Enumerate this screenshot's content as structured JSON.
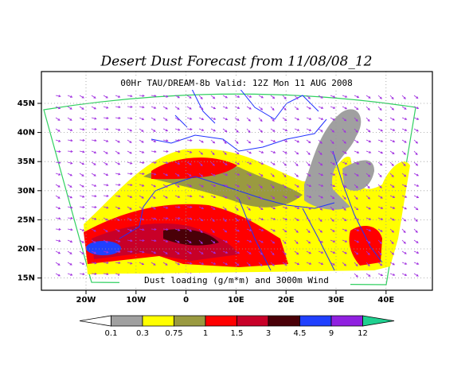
{
  "header": {
    "title": "Desert Dust Forecast from 11/08/08_12"
  },
  "map": {
    "subtitle": "00Hr TAU/DREAM-8b Valid: 12Z Mon 11 AUG 2008",
    "caption": "Dust loading (g/m*m) and 3000m Wind",
    "lat_labels": [
      "45N",
      "40N",
      "35N",
      "30N",
      "25N",
      "20N",
      "15N"
    ],
    "lon_labels": [
      "20W",
      "10W",
      "0",
      "10E",
      "20E",
      "30E",
      "40E"
    ]
  },
  "colorbar": {
    "levels": [
      0.1,
      0.3,
      0.75,
      1,
      1.5,
      3,
      4.5,
      9,
      12
    ],
    "colors": [
      "#ffffff",
      "#a0a0a0",
      "#ffff00",
      "#9a9a40",
      "#ff0000",
      "#c80028",
      "#4a0008",
      "#2040ff",
      "#9020e0",
      "#20d090"
    ]
  }
}
